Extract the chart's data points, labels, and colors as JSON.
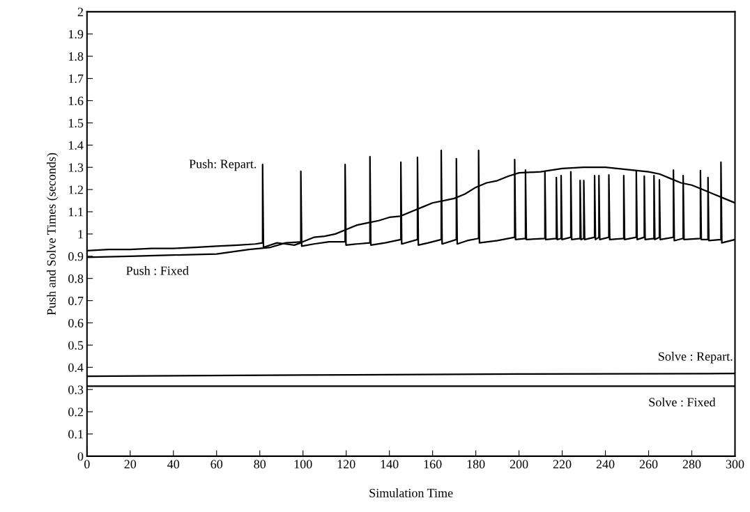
{
  "chart_data": {
    "type": "line",
    "xlabel": "Simulation Time",
    "ylabel": "Push and Solve Times (seconds)",
    "xlim": [
      0,
      300
    ],
    "xticks": [
      0,
      20,
      40,
      60,
      80,
      100,
      120,
      140,
      160,
      180,
      200,
      220,
      240,
      260,
      280,
      300
    ],
    "ylim": [
      0,
      2
    ],
    "yticks": [
      0,
      0.1,
      0.2,
      0.3,
      0.4,
      0.5,
      0.6,
      0.7,
      0.8,
      0.9,
      1,
      1.1,
      1.2,
      1.3,
      1.4,
      1.5,
      1.6,
      1.7,
      1.8,
      1.9,
      2
    ],
    "grid": false,
    "legend": false,
    "marker": "none",
    "line_style": "solid",
    "series": [
      {
        "name": "Push: Repart.",
        "color": "#000000",
        "x": [
          0,
          10,
          20,
          30,
          40,
          50,
          60,
          70,
          78,
          81.3,
          81.3,
          81.7,
          88,
          92,
          96,
          99,
          99,
          99.4,
          105,
          112,
          119.5,
          119.5,
          119.9,
          125,
          131,
          131,
          131.4,
          138,
          145.3,
          145.3,
          145.7,
          153,
          153,
          153.4,
          158,
          164,
          164,
          164.4,
          171,
          171,
          171.4,
          176,
          181.3,
          181.3,
          181.7,
          190,
          198,
          198,
          198.4,
          203,
          203,
          203.4,
          212,
          212,
          212.4,
          217.3,
          217.3,
          217.7,
          219.5,
          219.5,
          219.9,
          224,
          224,
          224.4,
          228.3,
          228.3,
          228.7,
          230,
          230,
          230.4,
          235,
          235,
          235.4,
          237,
          237,
          237.4,
          241.6,
          241.6,
          242,
          248.5,
          248.5,
          248.9,
          254.3,
          254.3,
          254.7,
          258,
          258,
          258.4,
          262.5,
          262.5,
          262.9,
          265,
          265,
          265.4,
          271.5,
          271.5,
          271.9,
          276,
          276,
          276.4,
          284,
          284,
          284.4,
          287.5,
          287.5,
          287.9,
          293.5,
          293.5,
          293.9,
          300
        ],
        "values": [
          0.925,
          0.93,
          0.93,
          0.935,
          0.935,
          0.94,
          0.945,
          0.95,
          0.955,
          0.96,
          1.313,
          0.94,
          0.96,
          0.955,
          0.95,
          0.96,
          1.282,
          0.945,
          0.955,
          0.965,
          0.965,
          1.313,
          0.95,
          0.955,
          0.96,
          1.348,
          0.95,
          0.96,
          0.975,
          1.323,
          0.955,
          0.975,
          1.345,
          0.95,
          0.96,
          0.975,
          1.376,
          0.955,
          0.975,
          1.339,
          0.955,
          0.97,
          0.98,
          1.376,
          0.96,
          0.97,
          0.985,
          1.335,
          0.975,
          0.98,
          1.288,
          0.975,
          0.98,
          1.279,
          0.975,
          0.98,
          1.254,
          0.975,
          0.98,
          1.263,
          0.975,
          0.985,
          1.28,
          0.975,
          0.98,
          1.241,
          0.975,
          0.98,
          1.241,
          0.975,
          0.985,
          1.263,
          0.975,
          0.985,
          1.263,
          0.975,
          0.985,
          1.266,
          0.975,
          0.98,
          1.263,
          0.975,
          0.985,
          1.285,
          0.975,
          0.985,
          1.26,
          0.975,
          0.98,
          1.263,
          0.975,
          0.985,
          1.244,
          0.975,
          0.985,
          1.288,
          0.97,
          0.98,
          1.263,
          0.975,
          0.98,
          1.285,
          0.975,
          0.975,
          1.254,
          0.97,
          0.975,
          1.323,
          0.96,
          0.975
        ]
      },
      {
        "name": "Push : Fixed",
        "color": "#000000",
        "x": [
          0,
          20,
          40,
          60,
          75,
          85,
          92,
          100,
          105,
          110,
          115,
          120,
          125,
          130,
          135,
          140,
          145,
          150,
          155,
          160,
          165,
          170,
          175,
          180,
          185,
          190,
          195,
          200,
          210,
          220,
          230,
          240,
          250,
          260,
          265,
          270,
          275,
          280,
          285,
          290,
          295,
          300
        ],
        "values": [
          0.895,
          0.9,
          0.905,
          0.91,
          0.93,
          0.94,
          0.96,
          0.965,
          0.985,
          0.99,
          1.0,
          1.02,
          1.04,
          1.05,
          1.06,
          1.075,
          1.08,
          1.1,
          1.12,
          1.14,
          1.15,
          1.16,
          1.18,
          1.21,
          1.23,
          1.24,
          1.26,
          1.275,
          1.28,
          1.295,
          1.3,
          1.3,
          1.29,
          1.28,
          1.27,
          1.25,
          1.23,
          1.22,
          1.2,
          1.18,
          1.16,
          1.14
        ]
      },
      {
        "name": "Solve : Repart.",
        "color": "#000000",
        "x": [
          0,
          100,
          200,
          300
        ],
        "values": [
          0.36,
          0.365,
          0.37,
          0.372
        ]
      },
      {
        "name": "Solve : Fixed",
        "color": "#000000",
        "x": [
          0,
          300
        ],
        "values": [
          0.315,
          0.315
        ]
      }
    ]
  }
}
